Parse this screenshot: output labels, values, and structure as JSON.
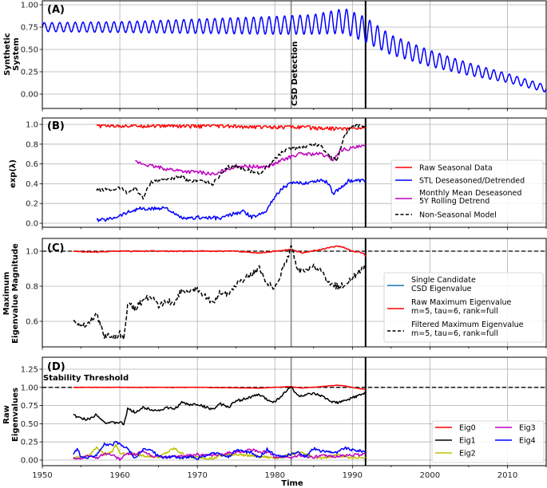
{
  "chart_data": [
    {
      "type": "line",
      "panel": "A",
      "panel_label": "(A)",
      "ylabel": "Synthetic\nSystem",
      "yticks": [
        0.0,
        0.25,
        0.5,
        0.75,
        1.0
      ],
      "ytick_labels": [
        "0.00",
        "0.25",
        "0.50",
        "0.75",
        "1.00"
      ],
      "ylim": [
        -0.15,
        1.05
      ],
      "annotation": "CSD Detection",
      "series": [
        {
          "name": "Synthetic System",
          "color": "#0000ff",
          "style": "solid",
          "x": [
            1950,
            1960,
            1970,
            1980,
            1985,
            1989,
            1991.7,
            1995,
            2000,
            2005,
            2010,
            2015
          ],
          "baseline": [
            0.75,
            0.75,
            0.76,
            0.77,
            0.78,
            0.82,
            0.72,
            0.55,
            0.4,
            0.28,
            0.18,
            0.06
          ],
          "amplitude": [
            0.05,
            0.06,
            0.08,
            0.1,
            0.11,
            0.14,
            0.14,
            0.11,
            0.09,
            0.07,
            0.05,
            0.04
          ],
          "period": 1.0
        }
      ]
    },
    {
      "type": "line",
      "panel": "B",
      "panel_label": "(B)",
      "ylabel": "exp(λ)",
      "yticks": [
        0.0,
        0.2,
        0.4,
        0.6,
        0.8,
        1.0
      ],
      "ytick_labels": [
        "0.0",
        "0.2",
        "0.4",
        "0.6",
        "0.8",
        "1.0"
      ],
      "ylim": [
        -0.04,
        1.07
      ],
      "series": [
        {
          "name": "Raw Seasonal Data",
          "color": "#ff0000",
          "style": "solid",
          "x": [
            1957,
            1965,
            1975,
            1980,
            1985,
            1988,
            1991.7
          ],
          "y": [
            0.99,
            0.99,
            0.98,
            0.98,
            0.97,
            0.96,
            0.97
          ]
        },
        {
          "name": "STL Deseasoned/Detrended",
          "color": "#0000ff",
          "style": "solid",
          "x": [
            1957,
            1958.5,
            1960,
            1961,
            1962.5,
            1963.5,
            1966,
            1967,
            1968.5,
            1970,
            1973,
            1974,
            1976,
            1977,
            1978,
            1979,
            1980,
            1981,
            1982,
            1984,
            1986,
            1987,
            1987.5,
            1988.5,
            1989.5,
            1991.7
          ],
          "y": [
            0.03,
            0.04,
            0.08,
            0.11,
            0.15,
            0.14,
            0.16,
            0.09,
            0.04,
            0.06,
            0.05,
            0.08,
            0.12,
            0.06,
            0.09,
            0.14,
            0.27,
            0.36,
            0.4,
            0.41,
            0.44,
            0.4,
            0.3,
            0.36,
            0.43,
            0.43
          ]
        },
        {
          "name": "Monthly Mean Deseasoned\n5Y Rolling Detrend",
          "color": "#c000c0",
          "style": "solid",
          "x": [
            1962,
            1964,
            1966,
            1969,
            1970,
            1972.5,
            1973,
            1975,
            1978,
            1979,
            1980,
            1981,
            1983,
            1986,
            1987.5,
            1988.5,
            1990,
            1991.7
          ],
          "y": [
            0.62,
            0.58,
            0.55,
            0.52,
            0.52,
            0.49,
            0.52,
            0.58,
            0.57,
            0.57,
            0.6,
            0.64,
            0.7,
            0.7,
            0.64,
            0.74,
            0.76,
            0.78
          ]
        },
        {
          "name": "Non-Seasonal Model",
          "color": "#000000",
          "style": "dashed",
          "x": [
            1957,
            1959,
            1960,
            1961,
            1962,
            1963,
            1964,
            1966,
            1968,
            1969,
            1970,
            1972,
            1974,
            1975,
            1976,
            1978,
            1980,
            1981,
            1982,
            1984,
            1985,
            1986,
            1987,
            1988,
            1989,
            1990,
            1991.7
          ],
          "y": [
            0.34,
            0.34,
            0.36,
            0.31,
            0.36,
            0.25,
            0.42,
            0.45,
            0.47,
            0.42,
            0.44,
            0.4,
            0.57,
            0.58,
            0.55,
            0.5,
            0.65,
            0.72,
            0.75,
            0.78,
            0.8,
            0.78,
            0.68,
            0.63,
            0.9,
            0.98,
            0.98
          ]
        }
      ],
      "legend": {
        "position": "center right",
        "entries": [
          "Raw Seasonal Data",
          "STL Deseasoned/Detrended",
          "Monthly Mean Deseasoned\n5Y Rolling Detrend",
          "Non-Seasonal Model"
        ]
      }
    },
    {
      "type": "line",
      "panel": "C",
      "panel_label": "(C)",
      "ylabel": "Maximum\nEigenvalue Magnitude",
      "yticks": [
        0.6,
        0.8,
        1.0
      ],
      "ytick_labels": [
        "0.6",
        "0.8",
        "1.0"
      ],
      "ylim": [
        0.465,
        1.07
      ],
      "series": [
        {
          "name": "Single Candidate\nCSD Eigenvalue",
          "color": "#1f77b4",
          "style": "solid",
          "x": [],
          "y": []
        },
        {
          "name": "Raw Maximum Eigenvalue\nm=5, tau=6, rank=full",
          "color": "#ff0000",
          "style": "solid",
          "x": [
            1954,
            1956,
            1960,
            1965,
            1970,
            1975,
            1978,
            1980,
            1982,
            1983.5,
            1986,
            1988,
            1989,
            1990,
            1991.4,
            1991.7
          ],
          "y": [
            1.0,
            0.995,
            1.0,
            1.0,
            1.0,
            1.0,
            0.99,
            1.0,
            1.01,
            0.99,
            1.01,
            1.03,
            1.02,
            1.0,
            0.99,
            0.97
          ]
        },
        {
          "name": "Filtered Maximum Eigenvalue\nm=5, tau=6, rank=full",
          "color": "#000000",
          "style": "dashed",
          "x": [
            1954,
            1955,
            1956,
            1957,
            1957.5,
            1958,
            1959,
            1960,
            1960.5,
            1961,
            1962,
            1963,
            1964,
            1965,
            1966,
            1967,
            1968,
            1969,
            1970,
            1971,
            1972,
            1973,
            1974,
            1975,
            1976,
            1977,
            1978,
            1979,
            1980,
            1981,
            1982.1,
            1982.5,
            1983,
            1985,
            1986,
            1987,
            1988,
            1989,
            1990,
            1991.7
          ],
          "y": [
            0.62,
            0.57,
            0.59,
            0.64,
            0.58,
            0.52,
            0.51,
            0.53,
            0.49,
            0.7,
            0.67,
            0.72,
            0.75,
            0.68,
            0.72,
            0.7,
            0.78,
            0.76,
            0.79,
            0.74,
            0.7,
            0.77,
            0.75,
            0.81,
            0.84,
            0.87,
            0.9,
            0.82,
            0.78,
            0.9,
            1.02,
            0.97,
            0.88,
            0.91,
            0.88,
            0.81,
            0.8,
            0.81,
            0.85,
            0.91
          ]
        }
      ],
      "reference_line": {
        "y": 1.0,
        "style": "dashed",
        "color": "#000000"
      },
      "legend": {
        "position": "center right",
        "entries": [
          "Single Candidate\nCSD Eigenvalue",
          "Raw Maximum Eigenvalue\nm=5, tau=6, rank=full",
          "Filtered Maximum Eigenvalue\nm=5, tau=6, rank=full"
        ]
      }
    },
    {
      "type": "line",
      "panel": "D",
      "panel_label": "(D)",
      "ylabel": "Raw\nEigenvalues",
      "xlabel": "Time",
      "xticks": [
        1950,
        1960,
        1970,
        1980,
        1990,
        2000,
        2010
      ],
      "xtick_labels": [
        "1950",
        "1960",
        "1970",
        "1980",
        "1990",
        "2000",
        "2010"
      ],
      "yticks": [
        0.0,
        0.25,
        0.5,
        0.75,
        1.0,
        1.25
      ],
      "ytick_labels": [
        "0.00",
        "0.25",
        "0.50",
        "0.75",
        "1.00",
        "1.25"
      ],
      "ylim": [
        -0.03,
        1.3
      ],
      "annotation": "Stability Threshold",
      "reference_line": {
        "y": 1.0,
        "style": "dashed",
        "color": "#000000"
      },
      "series": [
        {
          "name": "Eig0",
          "color": "#ff0000",
          "style": "solid",
          "x": [
            1954,
            1960,
            1970,
            1978,
            1980,
            1982,
            1983.5,
            1986,
            1988,
            1989,
            1990,
            1991.7
          ],
          "y": [
            1.0,
            1.0,
            1.0,
            0.99,
            1.0,
            1.01,
            0.99,
            1.01,
            1.03,
            1.02,
            1.0,
            0.97
          ]
        },
        {
          "name": "Eig1",
          "color": "#000000",
          "style": "solid",
          "x": [
            1954,
            1955,
            1956,
            1957,
            1957.5,
            1958,
            1959,
            1960,
            1960.5,
            1961,
            1962,
            1963,
            1964,
            1965,
            1966,
            1967,
            1968,
            1969,
            1970,
            1971,
            1972,
            1973,
            1974,
            1975,
            1976,
            1977,
            1978,
            1979,
            1980,
            1981,
            1982.1,
            1982.5,
            1983,
            1985,
            1986,
            1987,
            1988,
            1989,
            1990,
            1991.7
          ],
          "y": [
            0.62,
            0.57,
            0.56,
            0.63,
            0.58,
            0.52,
            0.51,
            0.52,
            0.49,
            0.7,
            0.66,
            0.72,
            0.7,
            0.68,
            0.72,
            0.7,
            0.79,
            0.76,
            0.77,
            0.73,
            0.7,
            0.77,
            0.73,
            0.81,
            0.84,
            0.87,
            0.9,
            0.83,
            0.8,
            0.9,
            1.01,
            0.95,
            0.88,
            0.91,
            0.88,
            0.82,
            0.79,
            0.81,
            0.86,
            0.92
          ]
        },
        {
          "name": "Eig2",
          "color": "#bfbf00",
          "style": "solid",
          "x": [
            1954,
            1955,
            1956,
            1957,
            1958,
            1959,
            1959.5,
            1960,
            1961,
            1962,
            1963,
            1964,
            1965,
            1966,
            1967,
            1968,
            1969,
            1970,
            1972,
            1973,
            1975,
            1978,
            1980,
            1981,
            1982,
            1983,
            1984,
            1985,
            1986,
            1988,
            1989,
            1990,
            1991.7
          ],
          "y": [
            0.03,
            0.04,
            0.06,
            0.18,
            0.08,
            0.12,
            0.21,
            0.1,
            0.09,
            0.08,
            0.06,
            0.05,
            0.04,
            0.1,
            0.16,
            0.09,
            0.03,
            0.04,
            0.02,
            0.06,
            0.08,
            0.05,
            0.03,
            0.04,
            0.08,
            0.1,
            0.08,
            0.04,
            0.02,
            0.07,
            0.05,
            0.03,
            0.04
          ]
        },
        {
          "name": "Eig3",
          "color": "#c000c0",
          "style": "solid",
          "x": [
            1954,
            1955,
            1956,
            1957,
            1958,
            1959,
            1960,
            1961,
            1962,
            1963,
            1964,
            1966,
            1968,
            1970,
            1972,
            1974,
            1976,
            1977,
            1978,
            1979,
            1980,
            1981,
            1982,
            1983,
            1984,
            1985,
            1986,
            1988,
            1990,
            1991.7
          ],
          "y": [
            0.03,
            0.02,
            0.06,
            0.03,
            0.09,
            0.07,
            0.01,
            0.09,
            0.08,
            0.12,
            0.06,
            0.04,
            0.05,
            0.08,
            0.06,
            0.1,
            0.12,
            0.15,
            0.1,
            0.12,
            0.04,
            0.05,
            0.03,
            0.06,
            0.05,
            0.04,
            0.06,
            0.05,
            0.07,
            0.08
          ]
        },
        {
          "name": "Eig4",
          "color": "#0000ff",
          "style": "solid",
          "x": [
            1954,
            1954.5,
            1955,
            1956,
            1957,
            1958,
            1959,
            1959.5,
            1960,
            1961,
            1962,
            1963,
            1964,
            1965,
            1966,
            1967,
            1968,
            1969,
            1970,
            1972,
            1974,
            1975,
            1977,
            1978,
            1979,
            1980,
            1981,
            1982,
            1983,
            1984,
            1985,
            1986,
            1987,
            1988,
            1989,
            1990,
            1991.7
          ],
          "y": [
            0.08,
            0.16,
            0.04,
            0.03,
            0.08,
            0.22,
            0.2,
            0.25,
            0.21,
            0.16,
            0.02,
            0.15,
            0.14,
            0.06,
            0.03,
            0.06,
            0.02,
            0.05,
            0.02,
            0.1,
            0.04,
            0.14,
            0.1,
            0.03,
            0.15,
            0.06,
            0.05,
            0.08,
            0.1,
            0.05,
            0.16,
            0.12,
            0.12,
            0.1,
            0.17,
            0.14,
            0.12
          ]
        }
      ],
      "legend": {
        "position": "lower right",
        "ncol": 2,
        "entries": [
          "Eig0",
          "Eig1",
          "Eig2",
          "Eig3",
          "Eig4"
        ]
      }
    }
  ],
  "shared": {
    "xlim": [
      1950,
      2015
    ],
    "xticks": [
      1950,
      1960,
      1970,
      1980,
      1990,
      2000,
      2010
    ],
    "xlabel": "Time",
    "csd_detection_year": 1982.1,
    "tipping_year": 1991.7,
    "grid": true
  },
  "labels": {
    "panelA": "(A)",
    "panelB": "(B)",
    "panelC": "(C)",
    "panelD": "(D)",
    "ylabelA1": "Synthetic",
    "ylabelA2": "System",
    "ylabelB": "exp(λ)",
    "ylabelC1": "Maximum",
    "ylabelC2": "Eigenvalue Magnitude",
    "ylabelD1": "Raw",
    "ylabelD2": "Eigenvalues",
    "csd": "CSD Detection",
    "stability": "Stability Threshold",
    "xlabel": "Time",
    "legendB": [
      "Raw Seasonal Data",
      "STL Deseasoned/Detrended",
      "Monthly Mean Deseasoned",
      "5Y Rolling Detrend",
      "Non-Seasonal Model"
    ],
    "legendC": [
      "Single Candidate",
      "CSD Eigenvalue",
      "Raw Maximum Eigenvalue",
      "m=5, tau=6, rank=full",
      "Filtered Maximum Eigenvalue",
      "m=5, tau=6, rank=full"
    ],
    "legendD": [
      "Eig0",
      "Eig1",
      "Eig2",
      "Eig3",
      "Eig4"
    ]
  }
}
